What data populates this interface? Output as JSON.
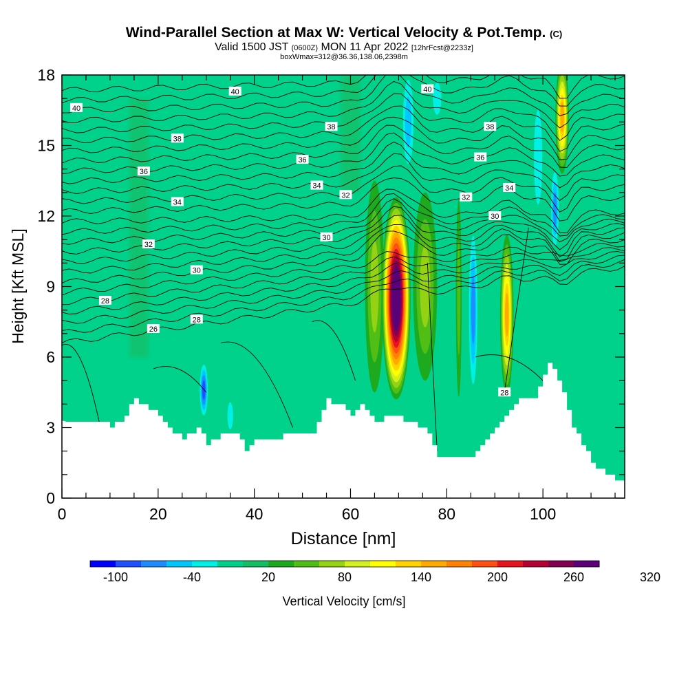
{
  "chart_data": {
    "type": "heatmap",
    "title": "Wind-Parallel Section at Max W: Vertical Velocity & Pot.Temp.",
    "title_mark": "(C)",
    "subtitle_parts": [
      "Valid 1500 JST",
      "(0600Z)",
      "MON 11 Apr 2022",
      "[12hrFcst@2233z]"
    ],
    "subtitle2": "boxWmax=312@36.36,138.06,2398m",
    "xlabel": "Distance [nm]",
    "ylabel": "Height [Kft MSL]",
    "xlim": [
      0,
      117
    ],
    "ylim": [
      0,
      18
    ],
    "x_ticks": [
      "0",
      "20",
      "40",
      "60",
      "80",
      "100"
    ],
    "y_ticks": [
      "0",
      "3",
      "6",
      "9",
      "12",
      "15",
      "18"
    ],
    "colorbar": {
      "label": "Vertical Velocity [cm/s]",
      "tick_labels": [
        "-100",
        "-40",
        "20",
        "80",
        "140",
        "200",
        "260",
        "320"
      ],
      "colors": [
        "#0000ff",
        "#1e50ff",
        "#1e8cff",
        "#00c8ff",
        "#00f0e6",
        "#00d28c",
        "#14be64",
        "#1eaa1e",
        "#50be14",
        "#96d214",
        "#d2f01e",
        "#ffff00",
        "#ffd200",
        "#ffaa00",
        "#ff8200",
        "#ff5014",
        "#e6141e",
        "#b40032",
        "#820050",
        "#5a0078"
      ]
    },
    "terrain_height_kft": [
      [
        0,
        3.3
      ],
      [
        8,
        3.3
      ],
      [
        10,
        3.0
      ],
      [
        12,
        3.3
      ],
      [
        15,
        4.2
      ],
      [
        18,
        3.8
      ],
      [
        21,
        3.3
      ],
      [
        23,
        2.8
      ],
      [
        25,
        2.5
      ],
      [
        28,
        3.0
      ],
      [
        30,
        2.3
      ],
      [
        33,
        2.7
      ],
      [
        36,
        2.8
      ],
      [
        38,
        2.1
      ],
      [
        40,
        2.6
      ],
      [
        45,
        2.6
      ],
      [
        52,
        2.8
      ],
      [
        55,
        4.2
      ],
      [
        58,
        3.9
      ],
      [
        60,
        3.5
      ],
      [
        62,
        3.9
      ],
      [
        65,
        3.3
      ],
      [
        68,
        3.5
      ],
      [
        72,
        3.3
      ],
      [
        76,
        2.8
      ],
      [
        78,
        1.7
      ],
      [
        85,
        1.7
      ],
      [
        87,
        2.2
      ],
      [
        91,
        3.3
      ],
      [
        95,
        4.3
      ],
      [
        98,
        4.3
      ],
      [
        101,
        5.8
      ],
      [
        103,
        5.1
      ],
      [
        106,
        3.0
      ],
      [
        110,
        1.5
      ],
      [
        114,
        0.9
      ],
      [
        117,
        0.5
      ]
    ],
    "velocity_features": [
      {
        "x": 69.5,
        "y": 8.5,
        "rx": 3.0,
        "ry": 4.3,
        "value": 300
      },
      {
        "x": 92.5,
        "y": 7.8,
        "rx": 1.4,
        "ry": 3.4,
        "value": 140
      },
      {
        "x": 104,
        "y": 16.2,
        "rx": 1.4,
        "ry": 2.4,
        "value": 140
      },
      {
        "x": 65,
        "y": 9.0,
        "rx": 2.0,
        "ry": 4.5,
        "value": 60
      },
      {
        "x": 75.5,
        "y": 9.0,
        "rx": 2.5,
        "ry": 4.0,
        "value": 60
      },
      {
        "x": 82.5,
        "y": 8.5,
        "rx": 0.6,
        "ry": 4.2,
        "value": 50
      },
      {
        "x": 85.5,
        "y": 8.0,
        "rx": 1.1,
        "ry": 4.0,
        "value": -90
      },
      {
        "x": 29.5,
        "y": 4.6,
        "rx": 1.0,
        "ry": 1.3,
        "value": -100
      },
      {
        "x": 102.5,
        "y": 12.3,
        "rx": 1.0,
        "ry": 2.0,
        "value": -80
      },
      {
        "x": 35,
        "y": 3.5,
        "rx": 1.0,
        "ry": 1.0,
        "value": -50
      },
      {
        "x": 50,
        "y": 4.5,
        "rx": 2.5,
        "ry": 2.2,
        "value": -30
      },
      {
        "x": 72,
        "y": 16,
        "rx": 1.5,
        "ry": 2.5,
        "value": -60
      },
      {
        "x": 78,
        "y": 17,
        "rx": 1.5,
        "ry": 1.2,
        "value": -40
      },
      {
        "x": 89,
        "y": 15.5,
        "rx": 2.0,
        "ry": 2.5,
        "value": -30
      },
      {
        "x": 99,
        "y": 14.5,
        "rx": 1.5,
        "ry": 3.5,
        "value": -40
      },
      {
        "x": 95,
        "y": 8.0,
        "rx": 2.0,
        "ry": 3.0,
        "value": -30
      },
      {
        "x": 80,
        "y": 12,
        "rx": 2.5,
        "ry": 2.5,
        "value": -25
      },
      {
        "x": 45,
        "y": 8.0,
        "rx": 6.0,
        "ry": 2.0,
        "value": -25
      },
      {
        "x": 20,
        "y": 5.0,
        "rx": 2.0,
        "ry": 1.5,
        "value": -20
      }
    ],
    "theta_labels": [
      {
        "text": "40",
        "x": 3,
        "y": 16.6
      },
      {
        "text": "40",
        "x": 36,
        "y": 17.3
      },
      {
        "text": "40",
        "x": 76,
        "y": 17.4
      },
      {
        "text": "38",
        "x": 24,
        "y": 15.3
      },
      {
        "text": "38",
        "x": 56,
        "y": 15.8
      },
      {
        "text": "38",
        "x": 89,
        "y": 15.8
      },
      {
        "text": "36",
        "x": 17,
        "y": 13.9
      },
      {
        "text": "36",
        "x": 50,
        "y": 14.4
      },
      {
        "text": "36",
        "x": 87,
        "y": 14.5
      },
      {
        "text": "34",
        "x": 24,
        "y": 12.6
      },
      {
        "text": "34",
        "x": 53,
        "y": 13.3
      },
      {
        "text": "34",
        "x": 93,
        "y": 13.2
      },
      {
        "text": "32",
        "x": 59,
        "y": 12.9
      },
      {
        "text": "32",
        "x": 84,
        "y": 12.8
      },
      {
        "text": "32",
        "x": 18,
        "y": 10.8
      },
      {
        "text": "30",
        "x": 90,
        "y": 12.0
      },
      {
        "text": "30",
        "x": 55,
        "y": 11.1
      },
      {
        "text": "30",
        "x": 28,
        "y": 9.7
      },
      {
        "text": "28",
        "x": 9,
        "y": 8.4
      },
      {
        "text": "28",
        "x": 28,
        "y": 7.6
      },
      {
        "text": "28",
        "x": 92,
        "y": 4.5
      },
      {
        "text": "26",
        "x": 19,
        "y": 7.2
      }
    ]
  }
}
